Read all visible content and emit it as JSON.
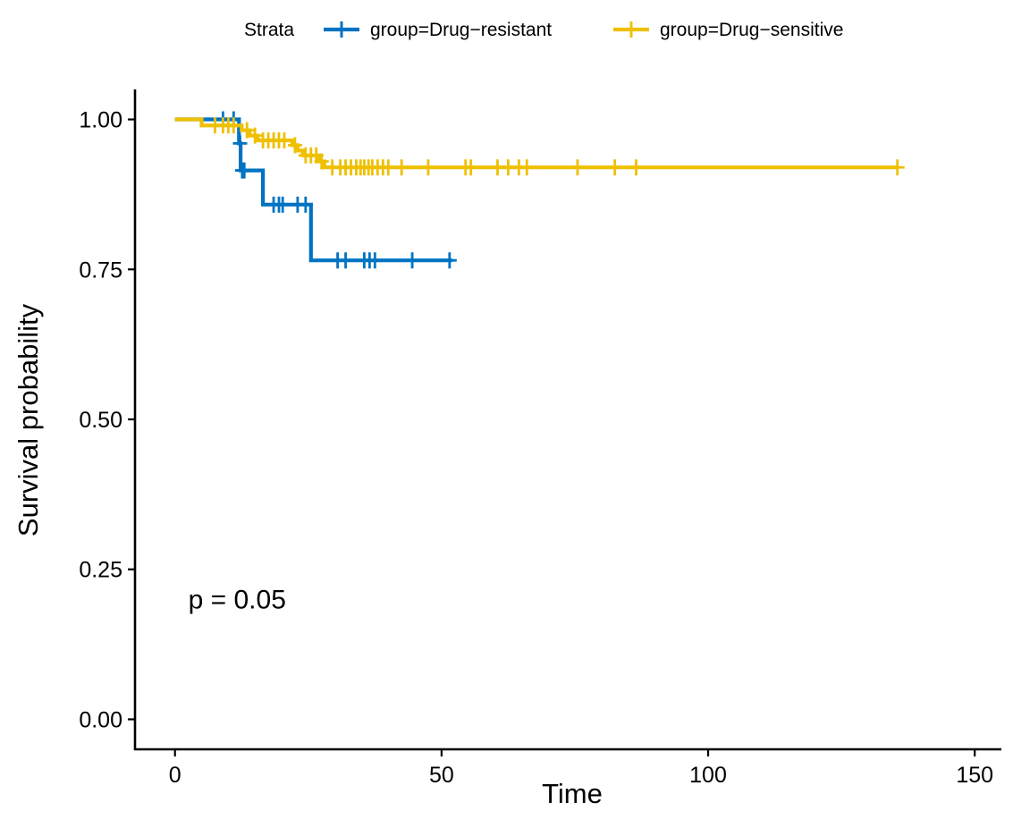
{
  "chart_data": {
    "type": "line",
    "subtype": "kaplan-meier step",
    "xlabel": "Time",
    "ylabel": "Survival probability",
    "xlim": [
      -7.5,
      155
    ],
    "ylim": [
      -0.05,
      1.05
    ],
    "x_ticks": [
      0,
      50,
      100,
      150
    ],
    "x_tick_labels": [
      "0",
      "50",
      "100",
      "150"
    ],
    "y_ticks": [
      0,
      0.25,
      0.5,
      0.75,
      1.0
    ],
    "y_tick_labels": [
      "0.00",
      "0.25",
      "0.50",
      "0.75",
      "1.00"
    ],
    "grid": false,
    "legend": {
      "title": "Strata",
      "placement": "top",
      "entries": [
        "group=Drug−resistant",
        "group=Drug−sensitive"
      ]
    },
    "annotations": [
      {
        "text": "p = 0.05",
        "x": 2.5,
        "y": 0.185
      }
    ],
    "series": [
      {
        "name": "group=Drug−resistant",
        "color": "#0073C2",
        "steps": [
          [
            0,
            1.0
          ],
          [
            12,
            0.96
          ],
          [
            12.3,
            0.915
          ],
          [
            16.5,
            0.858
          ],
          [
            25.5,
            0.765
          ],
          [
            52,
            0.765
          ]
        ],
        "censor": [
          [
            9,
            1.0
          ],
          [
            11,
            1.0
          ],
          [
            12.2,
            0.96
          ],
          [
            12.6,
            0.915
          ],
          [
            13,
            0.915
          ],
          [
            18.5,
            0.858
          ],
          [
            19.5,
            0.858
          ],
          [
            20.2,
            0.858
          ],
          [
            23,
            0.858
          ],
          [
            24.5,
            0.858
          ],
          [
            30.5,
            0.765
          ],
          [
            32,
            0.765
          ],
          [
            35.5,
            0.765
          ],
          [
            36.5,
            0.765
          ],
          [
            37.5,
            0.765
          ],
          [
            44.5,
            0.765
          ],
          [
            51.5,
            0.765
          ]
        ]
      },
      {
        "name": "group=Drug−sensitive",
        "color": "#EFC000",
        "steps": [
          [
            0,
            1.0
          ],
          [
            5,
            0.99
          ],
          [
            12.5,
            0.982
          ],
          [
            14,
            0.973
          ],
          [
            15.5,
            0.965
          ],
          [
            22,
            0.957
          ],
          [
            23,
            0.948
          ],
          [
            24,
            0.94
          ],
          [
            27,
            0.93
          ],
          [
            28,
            0.92
          ],
          [
            135.5,
            0.92
          ]
        ],
        "censor": [
          [
            7.5,
            0.99
          ],
          [
            9,
            0.99
          ],
          [
            10,
            0.99
          ],
          [
            11,
            0.99
          ],
          [
            13.5,
            0.982
          ],
          [
            15,
            0.973
          ],
          [
            16.5,
            0.965
          ],
          [
            17.5,
            0.965
          ],
          [
            18.5,
            0.965
          ],
          [
            19.5,
            0.965
          ],
          [
            20.5,
            0.965
          ],
          [
            22.5,
            0.957
          ],
          [
            24.5,
            0.94
          ],
          [
            25.5,
            0.94
          ],
          [
            26.5,
            0.94
          ],
          [
            27.5,
            0.93
          ],
          [
            29.5,
            0.92
          ],
          [
            31,
            0.92
          ],
          [
            32,
            0.92
          ],
          [
            33,
            0.92
          ],
          [
            34,
            0.92
          ],
          [
            34.8,
            0.92
          ],
          [
            35.5,
            0.92
          ],
          [
            36.3,
            0.92
          ],
          [
            37,
            0.92
          ],
          [
            38,
            0.92
          ],
          [
            39,
            0.92
          ],
          [
            40,
            0.92
          ],
          [
            42.5,
            0.92
          ],
          [
            47.5,
            0.92
          ],
          [
            54.5,
            0.92
          ],
          [
            55.5,
            0.92
          ],
          [
            60.5,
            0.92
          ],
          [
            62.5,
            0.92
          ],
          [
            64.5,
            0.92
          ],
          [
            66,
            0.92
          ],
          [
            75.5,
            0.92
          ],
          [
            82.5,
            0.92
          ],
          [
            86.5,
            0.92
          ],
          [
            135.5,
            0.92
          ]
        ]
      }
    ]
  }
}
